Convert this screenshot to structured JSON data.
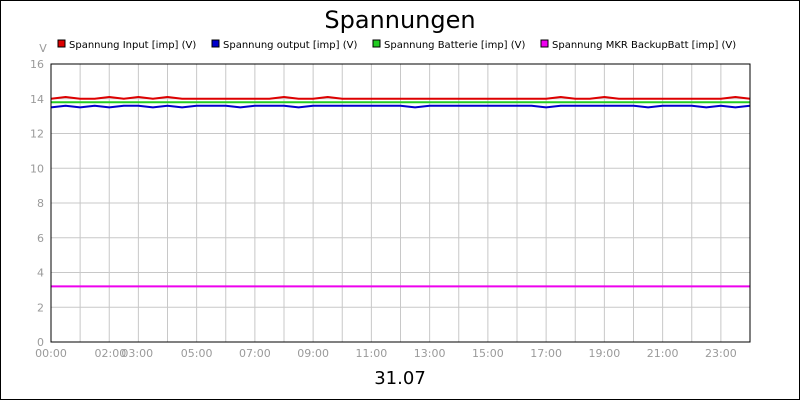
{
  "chart_data": {
    "type": "line",
    "title": "Spannungen",
    "xlabel": "31.07",
    "ylabel": "V",
    "ylim": [
      0,
      16
    ],
    "xlim_hours": [
      0,
      24
    ],
    "grid": true,
    "legend_placement": "top",
    "y_ticks": [
      "0",
      "2",
      "4",
      "6",
      "8",
      "10",
      "12",
      "14",
      "16"
    ],
    "x_ticks": [
      {
        "hour": 0,
        "label": "00:00"
      },
      {
        "hour": 2,
        "label": "02:00"
      },
      {
        "hour": 3,
        "label": "03:00"
      },
      {
        "hour": 5,
        "label": "05:00"
      },
      {
        "hour": 7,
        "label": "07:00"
      },
      {
        "hour": 9,
        "label": "09:00"
      },
      {
        "hour": 11,
        "label": "11:00"
      },
      {
        "hour": 13,
        "label": "13:00"
      },
      {
        "hour": 15,
        "label": "15:00"
      },
      {
        "hour": 17,
        "label": "17:00"
      },
      {
        "hour": 19,
        "label": "19:00"
      },
      {
        "hour": 21,
        "label": "21:00"
      },
      {
        "hour": 23,
        "label": "23:00"
      }
    ],
    "series": [
      {
        "name": "Spannung Input [imp] (V)",
        "color": "#dd0000",
        "x": [
          0,
          0.5,
          1,
          1.5,
          2,
          2.5,
          3,
          3.5,
          4,
          4.5,
          5,
          5.5,
          6,
          6.5,
          7,
          7.5,
          8,
          8.5,
          9,
          9.5,
          10,
          10.5,
          11,
          11.5,
          12,
          12.5,
          13,
          13.5,
          14,
          14.5,
          15,
          15.5,
          16,
          16.5,
          17,
          17.5,
          18,
          18.5,
          19,
          19.5,
          20,
          20.5,
          21,
          21.5,
          22,
          22.5,
          23,
          23.5,
          24
        ],
        "values": [
          14.0,
          14.1,
          14.0,
          14.0,
          14.1,
          14.0,
          14.1,
          14.0,
          14.1,
          14.0,
          14.0,
          14.0,
          14.0,
          14.0,
          14.0,
          14.0,
          14.1,
          14.0,
          14.0,
          14.1,
          14.0,
          14.0,
          14.0,
          14.0,
          14.0,
          14.0,
          14.0,
          14.0,
          14.0,
          14.0,
          14.0,
          14.0,
          14.0,
          14.0,
          14.0,
          14.1,
          14.0,
          14.0,
          14.1,
          14.0,
          14.0,
          14.0,
          14.0,
          14.0,
          14.0,
          14.0,
          14.0,
          14.1,
          14.0
        ]
      },
      {
        "name": "Spannung output [imp] (V)",
        "color": "#0000cc",
        "x": [
          0,
          0.5,
          1,
          1.5,
          2,
          2.5,
          3,
          3.5,
          4,
          4.5,
          5,
          5.5,
          6,
          6.5,
          7,
          7.5,
          8,
          8.5,
          9,
          9.5,
          10,
          10.5,
          11,
          11.5,
          12,
          12.5,
          13,
          13.5,
          14,
          14.5,
          15,
          15.5,
          16,
          16.5,
          17,
          17.5,
          18,
          18.5,
          19,
          19.5,
          20,
          20.5,
          21,
          21.5,
          22,
          22.5,
          23,
          23.5,
          24
        ],
        "values": [
          13.5,
          13.6,
          13.5,
          13.6,
          13.5,
          13.6,
          13.6,
          13.5,
          13.6,
          13.5,
          13.6,
          13.6,
          13.6,
          13.5,
          13.6,
          13.6,
          13.6,
          13.5,
          13.6,
          13.6,
          13.6,
          13.6,
          13.6,
          13.6,
          13.6,
          13.5,
          13.6,
          13.6,
          13.6,
          13.6,
          13.6,
          13.6,
          13.6,
          13.6,
          13.5,
          13.6,
          13.6,
          13.6,
          13.6,
          13.6,
          13.6,
          13.5,
          13.6,
          13.6,
          13.6,
          13.5,
          13.6,
          13.5,
          13.6
        ]
      },
      {
        "name": "Spannung Batterie [imp] (V)",
        "color": "#22cc22",
        "x": [
          0,
          24
        ],
        "values": [
          13.8,
          13.8
        ]
      },
      {
        "name": "Spannung MKR BackupBatt [imp] (V)",
        "color": "#ee00ee",
        "x": [
          0,
          24
        ],
        "values": [
          3.2,
          3.2
        ]
      }
    ]
  }
}
